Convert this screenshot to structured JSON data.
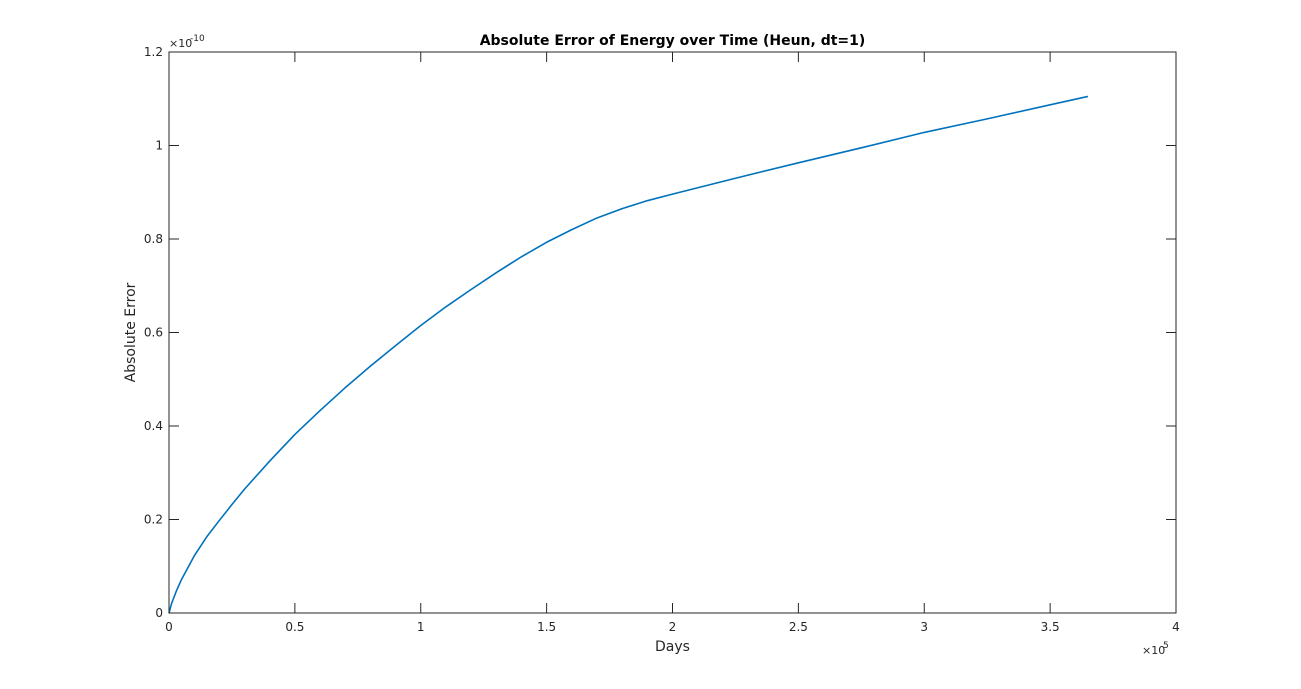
{
  "chart_data": {
    "type": "line",
    "title": "Absolute Error of Energy over Time (Heun, dt=1)",
    "xlabel": "Days",
    "ylabel": "Absolute Error",
    "xlim": [
      0,
      400000
    ],
    "ylim": [
      0,
      1.2e-10
    ],
    "x_ticks": [
      0,
      50000,
      100000,
      150000,
      200000,
      250000,
      300000,
      350000,
      400000
    ],
    "x_tick_labels": [
      "0",
      "0.5",
      "1",
      "1.5",
      "2",
      "2.5",
      "3",
      "3.5",
      "4"
    ],
    "y_ticks": [
      0,
      2e-11,
      4e-11,
      6e-11,
      8e-11,
      1e-10,
      1.2e-10
    ],
    "y_tick_labels": [
      "0",
      "0.2",
      "0.4",
      "0.6",
      "0.8",
      "1",
      "1.2"
    ],
    "x_exponent": {
      "base": "×10",
      "power": "5"
    },
    "y_exponent": {
      "base": "×10",
      "power": "-10"
    },
    "grid": false,
    "legend": "none",
    "series": [
      {
        "color": "#0072bd",
        "x": [
          0,
          1000,
          3000,
          5000,
          10000,
          15000,
          20000,
          25000,
          30000,
          40000,
          50000,
          60000,
          70000,
          80000,
          90000,
          100000,
          110000,
          120000,
          130000,
          140000,
          150000,
          160000,
          170000,
          180000,
          190000,
          200000,
          225000,
          250000,
          275000,
          300000,
          325000,
          350000,
          365000
        ],
        "y": [
          0,
          2e-12,
          4.8e-12,
          7.2e-12,
          1.22e-11,
          1.63e-11,
          1.98e-11,
          2.32e-11,
          2.65e-11,
          3.25e-11,
          3.82e-11,
          4.33e-11,
          4.82e-11,
          5.28e-11,
          5.72e-11,
          6.15e-11,
          6.55e-11,
          6.92e-11,
          7.28e-11,
          7.62e-11,
          7.93e-11,
          8.2e-11,
          8.45e-11,
          8.65e-11,
          8.82e-11,
          8.96e-11,
          9.3e-11,
          9.63e-11,
          9.95e-11,
          1.028e-10,
          1.057e-10,
          1.087e-10,
          1.105e-10
        ]
      }
    ]
  }
}
